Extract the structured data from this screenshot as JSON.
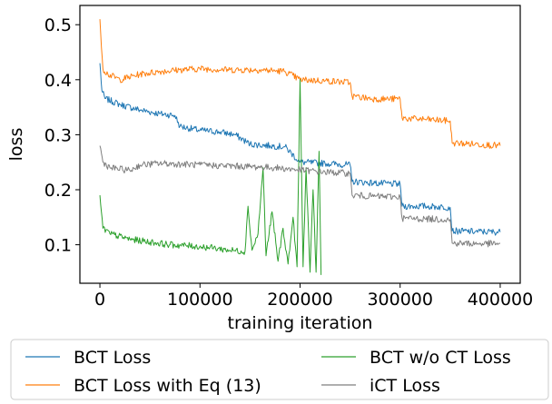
{
  "chart_data": {
    "type": "line",
    "xlabel": "training iteration",
    "ylabel": "loss",
    "xlim": [
      -20000,
      420000
    ],
    "ylim": [
      0.03,
      0.535
    ],
    "xticks": [
      0,
      100000,
      200000,
      300000,
      400000
    ],
    "xtick_labels": [
      "0",
      "100000",
      "200000",
      "300000",
      "400000"
    ],
    "yticks": [
      0.1,
      0.2,
      0.3,
      0.4,
      0.5
    ],
    "ytick_labels": [
      "0.1",
      "0.2",
      "0.3",
      "0.4",
      "0.5"
    ],
    "grid": false,
    "legend_position": "below",
    "series": [
      {
        "name": "BCT Loss",
        "color": "#1f77b4",
        "points": [
          [
            0,
            0.43
          ],
          [
            2000,
            0.38
          ],
          [
            5000,
            0.366
          ],
          [
            20000,
            0.355
          ],
          [
            40000,
            0.345
          ],
          [
            60000,
            0.338
          ],
          [
            75000,
            0.335
          ],
          [
            80000,
            0.315
          ],
          [
            100000,
            0.308
          ],
          [
            120000,
            0.305
          ],
          [
            135000,
            0.3
          ],
          [
            150000,
            0.283
          ],
          [
            170000,
            0.28
          ],
          [
            185000,
            0.278
          ],
          [
            200000,
            0.25
          ],
          [
            225000,
            0.248
          ],
          [
            250000,
            0.245
          ],
          [
            252000,
            0.215
          ],
          [
            275000,
            0.212
          ],
          [
            300000,
            0.21
          ],
          [
            302000,
            0.17
          ],
          [
            325000,
            0.17
          ],
          [
            350000,
            0.168
          ],
          [
            352000,
            0.125
          ],
          [
            375000,
            0.124
          ],
          [
            400000,
            0.123
          ]
        ]
      },
      {
        "name": "BCT Loss with Eq (13)",
        "color": "#ff7f0e",
        "points": [
          [
            0,
            0.51
          ],
          [
            3000,
            0.42
          ],
          [
            8000,
            0.41
          ],
          [
            20000,
            0.4
          ],
          [
            40000,
            0.41
          ],
          [
            60000,
            0.415
          ],
          [
            80000,
            0.418
          ],
          [
            100000,
            0.42
          ],
          [
            130000,
            0.418
          ],
          [
            160000,
            0.418
          ],
          [
            185000,
            0.415
          ],
          [
            200000,
            0.4
          ],
          [
            225000,
            0.398
          ],
          [
            250000,
            0.395
          ],
          [
            252000,
            0.37
          ],
          [
            275000,
            0.365
          ],
          [
            300000,
            0.365
          ],
          [
            302000,
            0.33
          ],
          [
            325000,
            0.328
          ],
          [
            350000,
            0.325
          ],
          [
            352000,
            0.285
          ],
          [
            375000,
            0.283
          ],
          [
            400000,
            0.28
          ]
        ]
      },
      {
        "name": "BCT w/o CT Loss",
        "color": "#2ca02c",
        "points": [
          [
            0,
            0.19
          ],
          [
            3000,
            0.13
          ],
          [
            10000,
            0.12
          ],
          [
            30000,
            0.11
          ],
          [
            50000,
            0.105
          ],
          [
            70000,
            0.1
          ],
          [
            90000,
            0.098
          ],
          [
            110000,
            0.095
          ],
          [
            130000,
            0.09
          ],
          [
            145000,
            0.088
          ],
          [
            148000,
            0.17
          ],
          [
            152000,
            0.09
          ],
          [
            158000,
            0.12
          ],
          [
            163000,
            0.24
          ],
          [
            166000,
            0.08
          ],
          [
            172000,
            0.16
          ],
          [
            178000,
            0.07
          ],
          [
            183000,
            0.13
          ],
          [
            188000,
            0.065
          ],
          [
            193000,
            0.15
          ],
          [
            197000,
            0.06
          ],
          [
            200000,
            0.4
          ],
          [
            203000,
            0.06
          ],
          [
            206000,
            0.24
          ],
          [
            210000,
            0.05
          ],
          [
            213000,
            0.2
          ],
          [
            216000,
            0.05
          ],
          [
            219000,
            0.27
          ],
          [
            221000,
            0.045
          ]
        ]
      },
      {
        "name": "iCT Loss",
        "color": "#7f7f7f",
        "points": [
          [
            0,
            0.28
          ],
          [
            3000,
            0.25
          ],
          [
            10000,
            0.24
          ],
          [
            30000,
            0.235
          ],
          [
            40000,
            0.245
          ],
          [
            60000,
            0.248
          ],
          [
            100000,
            0.245
          ],
          [
            150000,
            0.242
          ],
          [
            175000,
            0.24
          ],
          [
            200000,
            0.236
          ],
          [
            225000,
            0.232
          ],
          [
            250000,
            0.23
          ],
          [
            252000,
            0.19
          ],
          [
            275000,
            0.188
          ],
          [
            300000,
            0.187
          ],
          [
            302000,
            0.148
          ],
          [
            325000,
            0.147
          ],
          [
            350000,
            0.146
          ],
          [
            352000,
            0.103
          ],
          [
            375000,
            0.102
          ],
          [
            400000,
            0.102
          ]
        ]
      }
    ]
  }
}
